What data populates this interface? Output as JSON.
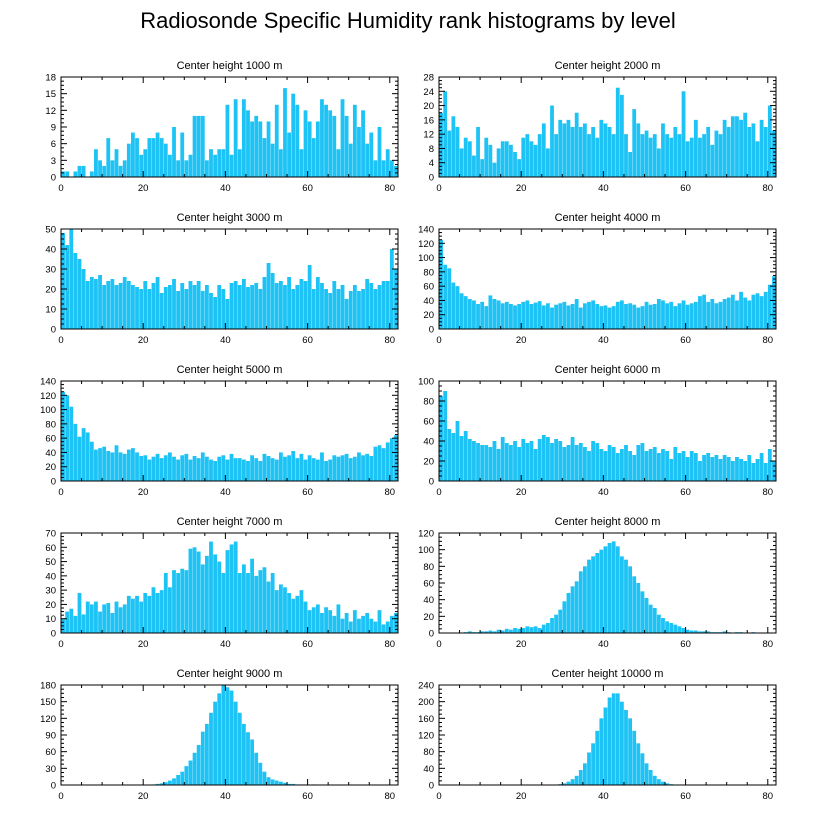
{
  "title": "Radiosonde Specific Humidity rank histograms by level",
  "colors": {
    "bar": "#1ec3f5",
    "axis": "#000000"
  },
  "chart_data": [
    {
      "type": "bar",
      "title": "Center height 1000 m",
      "ylim": [
        0,
        18
      ],
      "yticks": [
        0,
        3,
        6,
        9,
        12,
        15,
        18
      ],
      "xlim": [
        0,
        82
      ],
      "xticks": [
        0,
        20,
        40,
        60,
        80
      ],
      "values": [
        1,
        1,
        0,
        1,
        2,
        2,
        0,
        1,
        5,
        3,
        2,
        7,
        3,
        5,
        2,
        3,
        6,
        8,
        7,
        4,
        5,
        7,
        7,
        8,
        7,
        6,
        4,
        9,
        3,
        8,
        3,
        4,
        11,
        11,
        11,
        3,
        5,
        4,
        5,
        5,
        13,
        4,
        14,
        5,
        14,
        12,
        10,
        11,
        10,
        7,
        10,
        6,
        13,
        5,
        16,
        8,
        15,
        13,
        5,
        12,
        10,
        7,
        10,
        14,
        13,
        12,
        11,
        5,
        14,
        11,
        6,
        13,
        9,
        12,
        6,
        8,
        3,
        9,
        3,
        5,
        3,
        2
      ]
    },
    {
      "type": "bar",
      "title": "Center height 2000 m",
      "ylim": [
        0,
        28
      ],
      "yticks": [
        0,
        4,
        8,
        12,
        16,
        20,
        24,
        28
      ],
      "xlim": [
        0,
        82
      ],
      "xticks": [
        0,
        20,
        40,
        60,
        80
      ],
      "values": [
        18,
        24,
        13,
        17,
        14,
        8,
        11,
        10,
        6,
        14,
        5,
        11,
        9,
        4,
        8,
        10,
        10,
        9,
        7,
        5,
        11,
        12,
        10,
        9,
        12,
        15,
        8,
        20,
        12,
        16,
        15,
        16,
        14,
        18,
        14,
        15,
        12,
        14,
        11,
        16,
        15,
        14,
        12,
        25,
        23,
        12,
        7,
        19,
        15,
        12,
        13,
        11,
        12,
        8,
        15,
        12,
        11,
        14,
        12,
        24,
        10,
        11,
        16,
        11,
        12,
        14,
        9,
        13,
        12,
        16,
        14,
        17,
        17,
        16,
        18,
        14,
        15,
        10,
        16,
        14,
        20,
        13
      ]
    },
    {
      "type": "bar",
      "title": "Center height 3000 m",
      "ylim": [
        0,
        50
      ],
      "yticks": [
        0,
        10,
        20,
        30,
        40,
        50
      ],
      "xlim": [
        0,
        82
      ],
      "xticks": [
        0,
        20,
        40,
        60,
        80
      ],
      "values": [
        48,
        42,
        50,
        38,
        35,
        30,
        24,
        26,
        25,
        27,
        22,
        24,
        25,
        22,
        23,
        26,
        24,
        22,
        21,
        20,
        24,
        20,
        23,
        26,
        18,
        21,
        22,
        25,
        19,
        23,
        20,
        24,
        22,
        24,
        19,
        22,
        18,
        16,
        22,
        20,
        15,
        23,
        24,
        22,
        25,
        21,
        22,
        23,
        20,
        26,
        33,
        28,
        23,
        24,
        22,
        26,
        20,
        22,
        25,
        24,
        32,
        20,
        26,
        23,
        20,
        18,
        24,
        20,
        22,
        15,
        19,
        22,
        19,
        20,
        25,
        23,
        20,
        22,
        24,
        24,
        40,
        30
      ]
    },
    {
      "type": "bar",
      "title": "Center height 4000 m",
      "ylim": [
        0,
        140
      ],
      "yticks": [
        0,
        20,
        40,
        60,
        80,
        100,
        120,
        140
      ],
      "xlim": [
        0,
        82
      ],
      "xticks": [
        0,
        20,
        40,
        60,
        80
      ],
      "values": [
        125,
        90,
        85,
        65,
        60,
        50,
        46,
        42,
        40,
        35,
        38,
        32,
        47,
        42,
        40,
        36,
        38,
        35,
        33,
        35,
        38,
        40,
        35,
        37,
        39,
        33,
        36,
        30,
        34,
        36,
        38,
        33,
        35,
        42,
        30,
        36,
        38,
        40,
        35,
        32,
        33,
        30,
        32,
        38,
        40,
        35,
        36,
        34,
        30,
        32,
        38,
        34,
        35,
        42,
        40,
        36,
        38,
        32,
        36,
        40,
        34,
        36,
        38,
        46,
        48,
        38,
        42,
        36,
        38,
        42,
        44,
        48,
        40,
        52,
        44,
        40,
        48,
        50,
        46,
        52,
        62,
        74
      ]
    },
    {
      "type": "bar",
      "title": "Center height 5000 m",
      "ylim": [
        0,
        140
      ],
      "yticks": [
        0,
        20,
        40,
        60,
        80,
        100,
        120,
        140
      ],
      "xlim": [
        0,
        82
      ],
      "xticks": [
        0,
        20,
        40,
        60,
        80
      ],
      "values": [
        125,
        120,
        104,
        80,
        62,
        74,
        68,
        55,
        44,
        46,
        48,
        42,
        40,
        50,
        40,
        38,
        44,
        46,
        40,
        35,
        36,
        30,
        34,
        38,
        32,
        36,
        40,
        34,
        30,
        36,
        38,
        30,
        35,
        32,
        40,
        34,
        30,
        28,
        34,
        36,
        30,
        38,
        32,
        32,
        30,
        28,
        36,
        32,
        28,
        38,
        35,
        32,
        30,
        40,
        34,
        36,
        42,
        32,
        38,
        30,
        36,
        32,
        30,
        40,
        28,
        30,
        36,
        34,
        36,
        38,
        32,
        34,
        40,
        36,
        38,
        35,
        48,
        50,
        46,
        54,
        60,
        64
      ]
    },
    {
      "type": "bar",
      "title": "Center height 6000 m",
      "ylim": [
        0,
        100
      ],
      "yticks": [
        0,
        20,
        40,
        60,
        80,
        100
      ],
      "xlim": [
        0,
        82
      ],
      "xticks": [
        0,
        20,
        40,
        60,
        80
      ],
      "values": [
        85,
        90,
        52,
        48,
        60,
        45,
        50,
        42,
        40,
        38,
        36,
        36,
        34,
        40,
        32,
        44,
        38,
        36,
        40,
        34,
        42,
        38,
        40,
        32,
        42,
        46,
        44,
        38,
        42,
        40,
        34,
        36,
        44,
        36,
        38,
        34,
        30,
        40,
        38,
        32,
        30,
        36,
        34,
        28,
        32,
        36,
        30,
        26,
        36,
        38,
        30,
        32,
        34,
        28,
        32,
        30,
        22,
        34,
        28,
        30,
        24,
        30,
        28,
        20,
        26,
        28,
        24,
        26,
        22,
        26,
        24,
        20,
        24,
        22,
        20,
        26,
        18,
        22,
        28,
        18,
        32,
        20
      ]
    },
    {
      "type": "bar",
      "title": "Center height 7000 m",
      "ylim": [
        0,
        70
      ],
      "yticks": [
        0,
        10,
        20,
        30,
        40,
        50,
        60,
        70
      ],
      "xlim": [
        0,
        82
      ],
      "xticks": [
        0,
        20,
        40,
        60,
        80
      ],
      "values": [
        10,
        15,
        17,
        12,
        28,
        13,
        22,
        20,
        22,
        15,
        20,
        21,
        14,
        22,
        18,
        20,
        26,
        24,
        26,
        22,
        28,
        26,
        32,
        28,
        30,
        42,
        32,
        44,
        42,
        45,
        44,
        59,
        60,
        57,
        48,
        54,
        64,
        55,
        50,
        42,
        58,
        62,
        64,
        42,
        48,
        42,
        52,
        40,
        44,
        46,
        36,
        42,
        30,
        34,
        32,
        28,
        24,
        26,
        30,
        22,
        16,
        18,
        20,
        14,
        18,
        16,
        12,
        20,
        10,
        14,
        8,
        16,
        10,
        12,
        14,
        10,
        8,
        16,
        6,
        8,
        12,
        14
      ]
    },
    {
      "type": "bar",
      "title": "Center height 8000 m",
      "ylim": [
        0,
        120
      ],
      "yticks": [
        0,
        20,
        40,
        60,
        80,
        100,
        120
      ],
      "xlim": [
        0,
        82
      ],
      "xticks": [
        0,
        20,
        40,
        60,
        80
      ],
      "values": [
        0,
        0,
        0,
        0,
        0,
        0,
        1,
        2,
        1,
        1,
        2,
        2,
        3,
        2,
        4,
        3,
        5,
        4,
        6,
        5,
        6,
        8,
        7,
        8,
        6,
        10,
        12,
        18,
        22,
        28,
        38,
        48,
        56,
        62,
        74,
        80,
        88,
        92,
        96,
        100,
        104,
        108,
        110,
        104,
        92,
        88,
        80,
        68,
        60,
        50,
        42,
        34,
        30,
        22,
        18,
        14,
        12,
        10,
        8,
        6,
        4,
        3,
        3,
        2,
        2,
        2,
        1,
        1,
        1,
        2,
        1,
        0,
        1,
        1,
        0,
        0,
        1,
        0,
        0,
        0,
        0,
        0
      ]
    },
    {
      "type": "bar",
      "title": "Center height 9000 m",
      "ylim": [
        0,
        180
      ],
      "yticks": [
        0,
        30,
        60,
        90,
        120,
        150,
        180
      ],
      "xlim": [
        0,
        82
      ],
      "xticks": [
        0,
        20,
        40,
        60,
        80
      ],
      "values": [
        0,
        0,
        0,
        0,
        0,
        0,
        0,
        0,
        0,
        0,
        0,
        0,
        0,
        0,
        0,
        0,
        0,
        0,
        0,
        0,
        0,
        0,
        1,
        2,
        3,
        5,
        8,
        12,
        18,
        24,
        34,
        44,
        58,
        72,
        96,
        110,
        130,
        150,
        165,
        180,
        176,
        170,
        150,
        130,
        110,
        95,
        82,
        58,
        40,
        24,
        14,
        10,
        8,
        6,
        4,
        2,
        2,
        1,
        1,
        1,
        0,
        1,
        0,
        0,
        0,
        0,
        0,
        0,
        0,
        0,
        0,
        0,
        0,
        0,
        0,
        0,
        0,
        0,
        0,
        0,
        0,
        0
      ]
    },
    {
      "type": "bar",
      "title": "Center height 10000 m",
      "ylim": [
        0,
        240
      ],
      "yticks": [
        0,
        40,
        80,
        120,
        160,
        200,
        240
      ],
      "xlim": [
        0,
        82
      ],
      "xticks": [
        0,
        20,
        40,
        60,
        80
      ],
      "values": [
        0,
        0,
        0,
        0,
        0,
        0,
        0,
        0,
        0,
        0,
        0,
        0,
        0,
        0,
        0,
        0,
        0,
        0,
        0,
        0,
        0,
        0,
        0,
        0,
        0,
        0,
        0,
        0,
        1,
        2,
        4,
        8,
        14,
        22,
        36,
        52,
        78,
        100,
        130,
        160,
        186,
        210,
        220,
        220,
        200,
        180,
        160,
        130,
        100,
        76,
        52,
        36,
        22,
        14,
        8,
        4,
        2,
        1,
        1,
        0,
        0,
        0,
        0,
        0,
        0,
        0,
        0,
        0,
        0,
        0,
        0,
        0,
        0,
        0,
        0,
        0,
        0,
        0,
        0,
        0,
        0,
        0
      ]
    }
  ]
}
